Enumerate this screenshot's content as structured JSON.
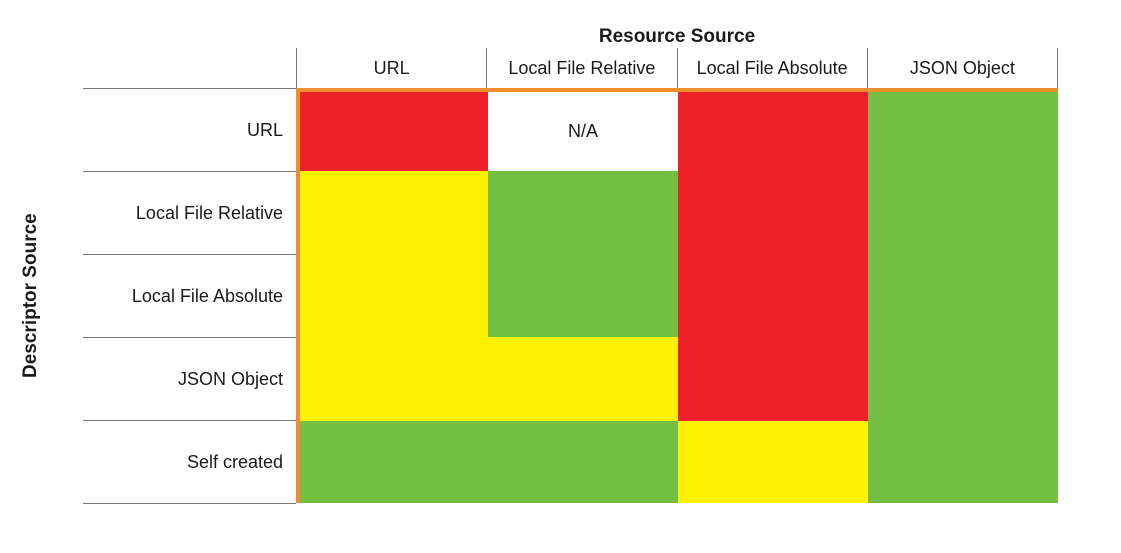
{
  "title": "Resource Source",
  "y_axis_label": "Descriptor Source",
  "na_label": "N/A",
  "columns": [
    "URL",
    "Local File Relative",
    "Local File Absolute",
    "JSON Object"
  ],
  "rows": [
    "URL",
    "Local File Relative",
    "Local File Absolute",
    "JSON Object",
    "Self created"
  ],
  "colors": {
    "red": "#ED2127",
    "yellow": "#FFF200",
    "green": "#72BF44",
    "na": "#FFFFFF",
    "orange_border": "#EF8E2D",
    "grid_line": "#757575"
  },
  "chart_data": {
    "type": "heatmap",
    "title": "Resource Source",
    "x_axis_label": "Resource Source",
    "y_axis_label": "Descriptor Source",
    "x_categories": [
      "URL",
      "Local File Relative",
      "Local File Absolute",
      "JSON Object"
    ],
    "y_categories": [
      "URL",
      "Local File Relative",
      "Local File Absolute",
      "JSON Object",
      "Self created"
    ],
    "cell_values": [
      [
        "red",
        "na",
        "red",
        "green"
      ],
      [
        "yellow",
        "green",
        "red",
        "green"
      ],
      [
        "yellow",
        "green",
        "red",
        "green"
      ],
      [
        "yellow",
        "yellow",
        "red",
        "green"
      ],
      [
        "green",
        "green",
        "yellow",
        "green"
      ]
    ],
    "na_cell_text": "N/A",
    "grid": "header-rules-only",
    "legend_position": "none",
    "accent_border": "orange top and left edges of matrix"
  }
}
